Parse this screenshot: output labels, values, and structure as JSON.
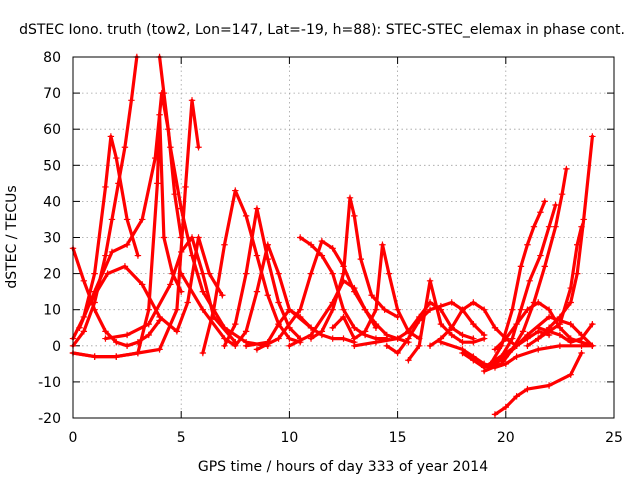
{
  "chart_data": {
    "type": "line",
    "title": "dSTEC Iono. truth (tow2, Lon=147, Lat=-19, h=88): STEC-STEC_elemax in phase cont.",
    "xlabel": "GPS time / hours of day 333 of year 2014",
    "ylabel": "dSTEC  / TECUs",
    "xlim": [
      0,
      25
    ],
    "ylim": [
      -20,
      80
    ],
    "xticks": [
      0,
      5,
      10,
      15,
      20,
      25
    ],
    "yticks": [
      -20,
      -10,
      0,
      10,
      20,
      30,
      40,
      50,
      60,
      70,
      80
    ],
    "grid": true,
    "legend": "none",
    "marker": "plus",
    "color": "#ff0000",
    "series": [
      {
        "x": [
          0.0,
          0.5,
          1.0,
          1.5,
          2.0,
          2.5,
          3.0,
          3.5,
          4.0
        ],
        "values": [
          27,
          18,
          10,
          4,
          1,
          0,
          1,
          3,
          7
        ]
      },
      {
        "x": [
          0.0,
          0.5,
          1.0,
          1.5,
          1.8,
          2.1,
          2.4,
          2.7,
          2.95
        ],
        "values": [
          0,
          4,
          12,
          25,
          35,
          45,
          55,
          68,
          80
        ]
      },
      {
        "x": [
          0.0,
          0.5,
          1.0,
          1.5,
          1.75,
          2.0,
          2.5,
          3.0
        ],
        "values": [
          2,
          8,
          20,
          44,
          58,
          52,
          35,
          25
        ]
      },
      {
        "x": [
          0.0,
          1.0,
          2.0,
          3.0,
          3.5,
          3.9,
          4.0,
          4.2,
          4.6,
          5.0
        ],
        "values": [
          -2,
          -3,
          -3,
          -2,
          10,
          45,
          64,
          30,
          20,
          15
        ]
      },
      {
        "x": [
          0.3,
          1.0,
          1.8,
          2.5,
          3.2,
          3.8,
          4.1,
          4.4,
          4.7,
          5.0
        ],
        "values": [
          5,
          15,
          26,
          28,
          35,
          52,
          70,
          60,
          42,
          30
        ]
      },
      {
        "x": [
          4.0,
          4.2,
          4.5,
          5.0,
          5.5,
          6.0,
          7.0,
          8.0,
          9.0
        ],
        "values": [
          80,
          70,
          55,
          38,
          25,
          15,
          5,
          1,
          0
        ]
      },
      {
        "x": [
          0.0,
          1.0,
          2.0,
          3.0,
          4.0,
          4.8,
          5.2,
          5.5,
          5.8
        ],
        "values": [
          -2,
          -3,
          -3,
          -2,
          -1,
          10,
          44,
          68,
          55
        ]
      },
      {
        "x": [
          0.8,
          1.6,
          2.4,
          3.2,
          4.0,
          4.8,
          5.3,
          5.8,
          6.3,
          6.9
        ],
        "values": [
          12,
          20,
          22,
          17,
          8,
          4,
          12,
          30,
          20,
          14
        ]
      },
      {
        "x": [
          1.5,
          2.5,
          3.5,
          4.5,
          5.0,
          5.5,
          6.0,
          6.5,
          7.5
        ],
        "values": [
          2,
          3,
          6,
          17,
          26,
          30,
          20,
          8,
          1
        ]
      },
      {
        "x": [
          5.0,
          6.0,
          7.0,
          7.5,
          8.0,
          8.5,
          9.0,
          9.5,
          10.0,
          11.0
        ],
        "values": [
          20,
          10,
          2,
          0,
          4,
          15,
          28,
          20,
          10,
          5
        ]
      },
      {
        "x": [
          6.0,
          6.5,
          7.0,
          7.5,
          8.0,
          8.5,
          9.0,
          9.5,
          10.0,
          10.5
        ],
        "values": [
          -2,
          10,
          28,
          43,
          36,
          25,
          14,
          6,
          2,
          1
        ]
      },
      {
        "x": [
          7.0,
          7.5,
          8.0,
          8.5,
          9.0,
          9.5,
          10.0,
          10.5
        ],
        "values": [
          0,
          6,
          20,
          38,
          24,
          12,
          5,
          2
        ]
      },
      {
        "x": [
          8.0,
          9.0,
          9.5,
          10.0,
          10.5,
          11.0,
          11.5,
          12.0,
          12.5,
          13.0
        ],
        "values": [
          0,
          1,
          6,
          10,
          8,
          5,
          3,
          2,
          2,
          1
        ]
      },
      {
        "x": [
          8.5,
          9.5,
          10.5,
          11.0,
          11.5,
          12.0,
          12.5,
          13.0,
          13.5,
          14.0
        ],
        "values": [
          -1,
          2,
          10,
          20,
          29,
          27,
          22,
          15,
          10,
          5
        ]
      },
      {
        "x": [
          10.5,
          11.0,
          11.5,
          12.0,
          12.5,
          13.0,
          13.5,
          14.0,
          14.5
        ],
        "values": [
          30,
          28,
          25,
          20,
          10,
          5,
          3,
          2,
          2
        ]
      },
      {
        "x": [
          11.0,
          11.5,
          12.0,
          12.5,
          12.8,
          13.0,
          13.3,
          13.8,
          14.4,
          15.0
        ],
        "values": [
          2,
          4,
          10,
          20,
          41,
          36,
          24,
          14,
          10,
          8
        ]
      },
      {
        "x": [
          10.0,
          11.0,
          12.0,
          12.5,
          13.0,
          13.5,
          14.0,
          14.5,
          15.0,
          15.5
        ],
        "values": [
          0,
          3,
          12,
          18,
          16,
          10,
          6,
          3,
          2,
          1
        ]
      },
      {
        "x": [
          12.0,
          12.5,
          13.0,
          13.5,
          14.0,
          14.3,
          14.6,
          15.0,
          15.5,
          16.0
        ],
        "values": [
          5,
          8,
          2,
          4,
          10,
          28,
          20,
          10,
          4,
          2
        ]
      },
      {
        "x": [
          13.0,
          14.0,
          15.0,
          15.5,
          16.0,
          16.5,
          17.0,
          17.5,
          18.0,
          18.5
        ],
        "values": [
          0,
          1,
          2,
          4,
          8,
          12,
          10,
          5,
          3,
          2
        ]
      },
      {
        "x": [
          14.5,
          15.0,
          15.5,
          16.0,
          16.5,
          17.0,
          17.5,
          18.0,
          18.5,
          19.0
        ],
        "values": [
          0,
          -2,
          2,
          7,
          10,
          11,
          12,
          10,
          6,
          3
        ]
      },
      {
        "x": [
          15.5,
          16.0,
          16.5,
          17.0,
          17.5,
          18.0,
          18.5,
          19.0
        ],
        "values": [
          -4,
          0,
          18,
          6,
          3,
          1,
          1,
          2
        ]
      },
      {
        "x": [
          16.5,
          17.0,
          17.5,
          18.0,
          18.5,
          19.0,
          19.5,
          20.0,
          20.5
        ],
        "values": [
          0,
          2,
          5,
          10,
          12,
          10,
          5,
          2,
          0
        ]
      },
      {
        "x": [
          18.0,
          18.5,
          19.0,
          19.5,
          20.0,
          20.5,
          21.0,
          21.5,
          22.0
        ],
        "values": [
          -2,
          -4,
          -6,
          -5,
          -3,
          0,
          2,
          4,
          3
        ]
      },
      {
        "x": [
          19.0,
          19.5,
          20.0,
          20.5,
          21.0,
          22.0,
          23.0,
          23.5,
          24.0
        ],
        "values": [
          -6,
          -4,
          -2,
          0,
          3,
          8,
          6,
          3,
          0
        ]
      },
      {
        "x": [
          19.5,
          20.0,
          20.5,
          21.0,
          21.5,
          22.0,
          22.5,
          23.0,
          23.5,
          24.0
        ],
        "values": [
          -1,
          2,
          6,
          10,
          12,
          10,
          5,
          2,
          1,
          0
        ]
      },
      {
        "x": [
          19.0,
          19.8,
          20.3,
          20.8,
          21.3,
          21.8,
          22.3,
          22.6,
          22.8
        ],
        "values": [
          -7,
          -5,
          -1,
          4,
          12,
          22,
          33,
          42,
          49
        ]
      },
      {
        "x": [
          19.2,
          19.8,
          20.3,
          20.7,
          21.1,
          21.6,
          22.0,
          22.3
        ],
        "values": [
          -6,
          -3,
          2,
          10,
          18,
          25,
          33,
          39
        ]
      },
      {
        "x": [
          19.3,
          19.8,
          20.3,
          20.7,
          21.0,
          21.3,
          21.6,
          21.8
        ],
        "values": [
          -5,
          0,
          10,
          22,
          28,
          33,
          37,
          40
        ]
      },
      {
        "x": [
          19.5,
          20.0,
          20.5,
          21.0,
          22.0,
          23.0,
          23.5
        ],
        "values": [
          -19,
          -17,
          -14,
          -12,
          -11,
          -8,
          -2
        ]
      },
      {
        "x": [
          21.5,
          22.0,
          22.5,
          23.0,
          23.3,
          23.6,
          24.0
        ],
        "values": [
          2,
          5,
          8,
          12,
          20,
          35,
          58
        ]
      },
      {
        "x": [
          21.0,
          21.5,
          22.0,
          22.5,
          23.0,
          23.3,
          23.5
        ],
        "values": [
          0,
          2,
          4,
          6,
          16,
          28,
          33
        ]
      },
      {
        "x": [
          21.5,
          22.5,
          23.0,
          23.5,
          24.0
        ],
        "values": [
          5,
          3,
          1,
          2,
          6
        ]
      },
      {
        "x": [
          17.0,
          18.0,
          18.5,
          19.0,
          19.5,
          20.0,
          20.5,
          21.5,
          22.5,
          23.5,
          24.0
        ],
        "values": [
          1,
          -1,
          -3,
          -5,
          -6,
          -5,
          -3,
          -1,
          0,
          0,
          0
        ]
      }
    ]
  }
}
